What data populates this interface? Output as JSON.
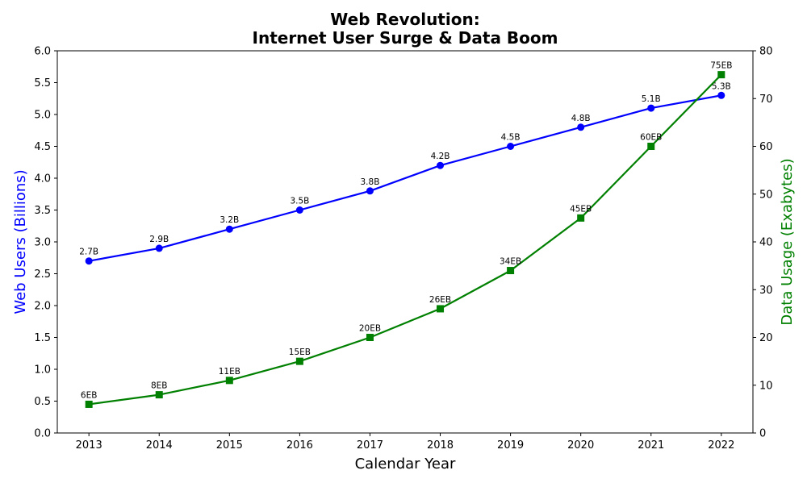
{
  "chart_data": {
    "type": "line",
    "title_line1": "Web Revolution:",
    "title_line2": "Internet User Surge & Data Boom",
    "xlabel": "Calendar Year",
    "ylabel_left": "Web Users (Billions)",
    "ylabel_right": "Data Usage (Exabytes)",
    "x": [
      2013,
      2014,
      2015,
      2016,
      2017,
      2018,
      2019,
      2020,
      2021,
      2022
    ],
    "ylim_left": [
      0,
      6
    ],
    "yticks_left": [
      "0.0",
      "0.5",
      "1.0",
      "1.5",
      "2.0",
      "2.5",
      "3.0",
      "3.5",
      "4.0",
      "4.5",
      "5.0",
      "5.5",
      "6.0"
    ],
    "ylim_right": [
      0,
      80
    ],
    "yticks_right": [
      "0",
      "10",
      "20",
      "30",
      "40",
      "50",
      "60",
      "70",
      "80"
    ],
    "grid": false,
    "series": [
      {
        "axis": "left",
        "color": "#0000ff",
        "marker": "circle",
        "values": [
          2.7,
          2.9,
          3.2,
          3.5,
          3.8,
          4.2,
          4.5,
          4.8,
          5.1,
          5.3
        ],
        "labels": [
          "2.7B",
          "2.9B",
          "3.2B",
          "3.5B",
          "3.8B",
          "4.2B",
          "4.5B",
          "4.8B",
          "5.1B",
          "5.3B"
        ]
      },
      {
        "axis": "right",
        "color": "#008000",
        "marker": "square",
        "values": [
          6,
          8,
          11,
          15,
          20,
          26,
          34,
          45,
          60,
          75
        ],
        "labels": [
          "6EB",
          "8EB",
          "11EB",
          "15EB",
          "20EB",
          "26EB",
          "34EB",
          "45EB",
          "60EB",
          "75EB"
        ]
      }
    ]
  }
}
